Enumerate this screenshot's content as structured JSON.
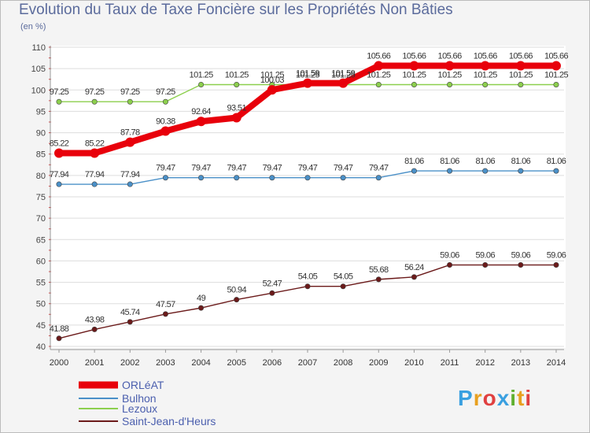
{
  "chart_data": {
    "type": "line",
    "title": "Evolution du Taux de Taxe Foncière sur les Propriétés Non Bâties",
    "subtitle": "(en %)",
    "xlabel": "",
    "ylabel": "",
    "x": [
      "2000",
      "2001",
      "2002",
      "2003",
      "2004",
      "2005",
      "2006",
      "2007",
      "2008",
      "2009",
      "2010",
      "2011",
      "2012",
      "2013",
      "2014"
    ],
    "ylim": [
      40,
      110
    ],
    "yticks": [
      40,
      45,
      50,
      55,
      60,
      65,
      70,
      75,
      80,
      85,
      90,
      95,
      100,
      105,
      110
    ],
    "grid": true,
    "legend_position": "bottom-left",
    "series": [
      {
        "name": "ORLéAT",
        "color": "#e8000b",
        "values": [
          85.22,
          85.22,
          87.78,
          90.38,
          92.64,
          93.51,
          100.03,
          101.59,
          101.59,
          105.66,
          105.66,
          105.66,
          105.66,
          105.66,
          105.66
        ],
        "labels": [
          "85.22",
          "85.22",
          "87.78",
          "90.38",
          "92.64",
          "93.51",
          "100.03",
          "101.59",
          "101.59",
          "105.66",
          "105.66",
          "105.66",
          "105.66",
          "105.66",
          "105.66"
        ]
      },
      {
        "name": "Bulhon",
        "color": "#4a90c8",
        "values": [
          77.94,
          77.94,
          77.94,
          79.47,
          79.47,
          79.47,
          79.47,
          79.47,
          79.47,
          79.47,
          81.06,
          81.06,
          81.06,
          81.06,
          81.06
        ],
        "labels": [
          "77.94",
          "77.94",
          "77.94",
          "79.47",
          "79.47",
          "79.47",
          "79.47",
          "79.47",
          "79.47",
          "79.47",
          "81.06",
          "81.06",
          "81.06",
          "81.06",
          "81.06"
        ]
      },
      {
        "name": "Lezoux",
        "color": "#8ccf4d",
        "values": [
          97.25,
          97.25,
          97.25,
          97.25,
          101.25,
          101.25,
          101.25,
          101.25,
          101.25,
          101.25,
          101.25,
          101.25,
          101.25,
          101.25,
          101.25
        ],
        "labels": [
          "97.25",
          "97.25",
          "97.25",
          "97.25",
          "101.25",
          "101.25",
          "101.25",
          "101.25",
          "101.25",
          "101.25",
          "101.25",
          "101.25",
          "101.25",
          "101.25",
          "101.25"
        ]
      },
      {
        "name": "Saint-Jean-d'Heurs",
        "color": "#6b1a1a",
        "values": [
          41.88,
          43.98,
          45.74,
          47.57,
          49,
          50.94,
          52.47,
          54.05,
          54.05,
          55.68,
          56.24,
          59.06,
          59.06,
          59.06,
          59.06
        ],
        "labels": [
          "41.88",
          "43.98",
          "45.74",
          "47.57",
          "49",
          "50.94",
          "52.47",
          "54.05",
          "54.05",
          "55.68",
          "56.24",
          "59.06",
          "59.06",
          "59.06",
          "59.06"
        ]
      }
    ]
  },
  "brand": {
    "text": "Proxiti",
    "letters": [
      "P",
      "r",
      "o",
      "x",
      "i",
      "t",
      "i"
    ],
    "colors": [
      "#3aa0e0",
      "#e8a020",
      "#e04040",
      "#3aa0e0",
      "#60b030",
      "#e8a020",
      "#e04040"
    ]
  }
}
